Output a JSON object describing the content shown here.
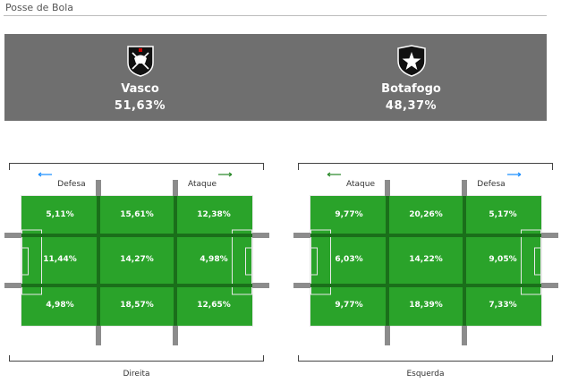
{
  "section": {
    "title": "Posse de Bola"
  },
  "home": {
    "name": "Vasco",
    "possession": "51,63%",
    "crest_icon": "vasco-crest-icon"
  },
  "away": {
    "name": "Botafogo",
    "possession": "48,37%",
    "crest_icon": "botafogo-crest-icon"
  },
  "panels": [
    {
      "left_label": "Defesa",
      "right_label": "Ataque",
      "left_arrow_color": "#1e90ff",
      "right_arrow_color": "#2e8b2e",
      "bottom_label": "Direita",
      "grid": [
        [
          "5,11%",
          "15,61%",
          "12,38%"
        ],
        [
          "11,44%",
          "14,27%",
          "4,98%"
        ],
        [
          "4,98%",
          "18,57%",
          "12,65%"
        ]
      ]
    },
    {
      "left_label": "Ataque",
      "right_label": "Defesa",
      "left_arrow_color": "#2e8b2e",
      "right_arrow_color": "#1e90ff",
      "bottom_label": "Esquerda",
      "grid": [
        [
          "9,77%",
          "20,26%",
          "5,17%"
        ],
        [
          "6,03%",
          "14,22%",
          "9,05%"
        ],
        [
          "9,77%",
          "18,39%",
          "7,33%"
        ]
      ]
    }
  ],
  "colors": {
    "banner": "#6f6f6f",
    "pitch": "#2aa32a",
    "grid_bar": "#8c8c8c"
  }
}
